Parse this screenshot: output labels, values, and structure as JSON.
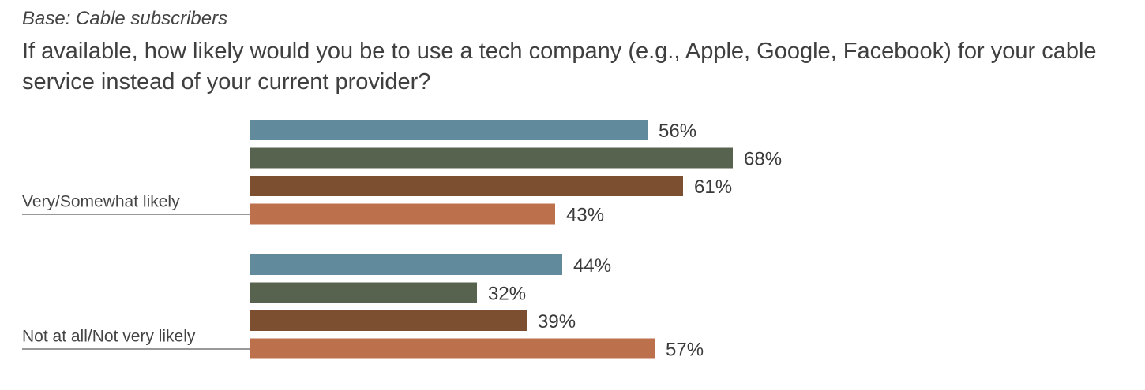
{
  "base_label": "Base: Cable subscribers",
  "question": "If available, how likely would you be to use a tech company (e.g., Apple, Google, Facebook) for your cable service instead of your current provider?",
  "chart_data": {
    "type": "bar",
    "orientation": "horizontal",
    "categories": [
      "Very/Somewhat likely",
      "Not at all/Not very likely"
    ],
    "series": [
      {
        "color": "#618a9d",
        "values": [
          56,
          44
        ]
      },
      {
        "color": "#58634f",
        "values": [
          68,
          32
        ]
      },
      {
        "color": "#7c4f31",
        "values": [
          61,
          39
        ]
      },
      {
        "color": "#bc714c",
        "values": [
          43,
          57
        ]
      }
    ],
    "value_suffix": "%",
    "legend": "none",
    "grid": false
  }
}
